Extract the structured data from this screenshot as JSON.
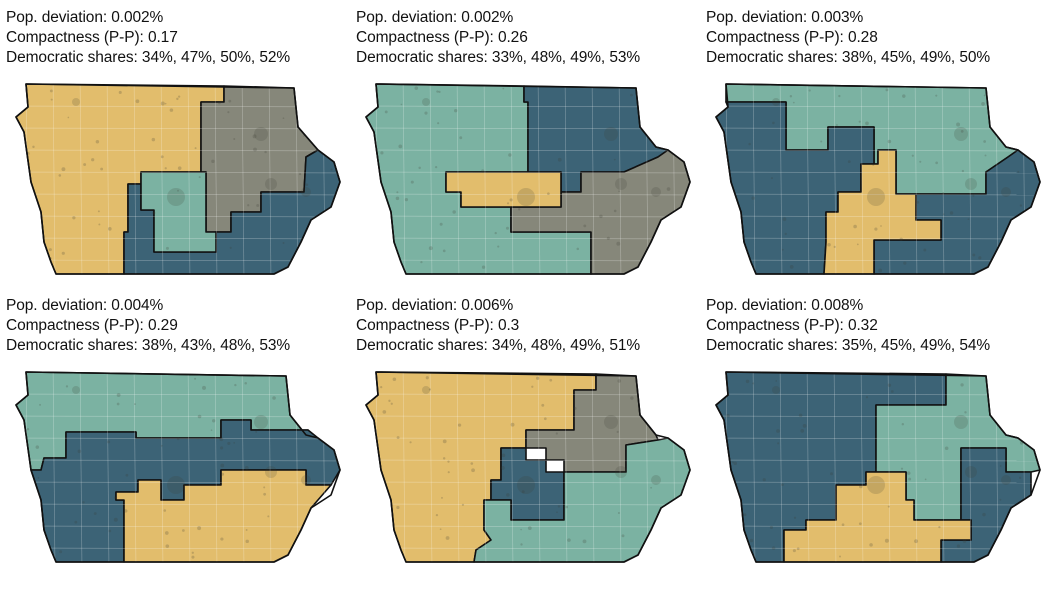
{
  "colors": {
    "yellow": "#E2BD6C",
    "teal": "#7BB2A2",
    "navy": "#3C6376",
    "gray": "#86877A"
  },
  "plans": [
    {
      "pop_deviation": "Pop. deviation: 0.002%",
      "compactness": "Compactness (P-P): 0.17",
      "dem_shares": "Democratic shares: 34%, 47%, 50%, 52%",
      "district_colors": [
        "yellow",
        "gray",
        "navy",
        "teal"
      ]
    },
    {
      "pop_deviation": "Pop. deviation: 0.002%",
      "compactness": "Compactness (P-P): 0.26",
      "dem_shares": "Democratic shares: 33%, 48%, 49%, 53%",
      "district_colors": [
        "teal",
        "navy",
        "gray",
        "yellow"
      ]
    },
    {
      "pop_deviation": "Pop. deviation: 0.003%",
      "compactness": "Compactness (P-P): 0.28",
      "dem_shares": "Democratic shares: 38%, 45%, 49%, 50%",
      "district_colors": [
        "teal",
        "navy",
        "yellow"
      ]
    },
    {
      "pop_deviation": "Pop. deviation: 0.004%",
      "compactness": "Compactness (P-P): 0.29",
      "dem_shares": "Democratic shares: 38%, 43%, 48%, 53%",
      "district_colors": [
        "teal",
        "navy",
        "yellow"
      ]
    },
    {
      "pop_deviation": "Pop. deviation: 0.006%",
      "compactness": "Compactness (P-P): 0.3",
      "dem_shares": "Democratic shares: 34%, 48%, 49%, 51%",
      "district_colors": [
        "yellow",
        "gray",
        "navy",
        "teal"
      ]
    },
    {
      "pop_deviation": "Pop. deviation: 0.008%",
      "compactness": "Compactness (P-P): 0.32",
      "dem_shares": "Democratic shares: 35%, 45%, 49%, 54%",
      "district_colors": [
        "navy",
        "teal",
        "yellow"
      ]
    }
  ]
}
